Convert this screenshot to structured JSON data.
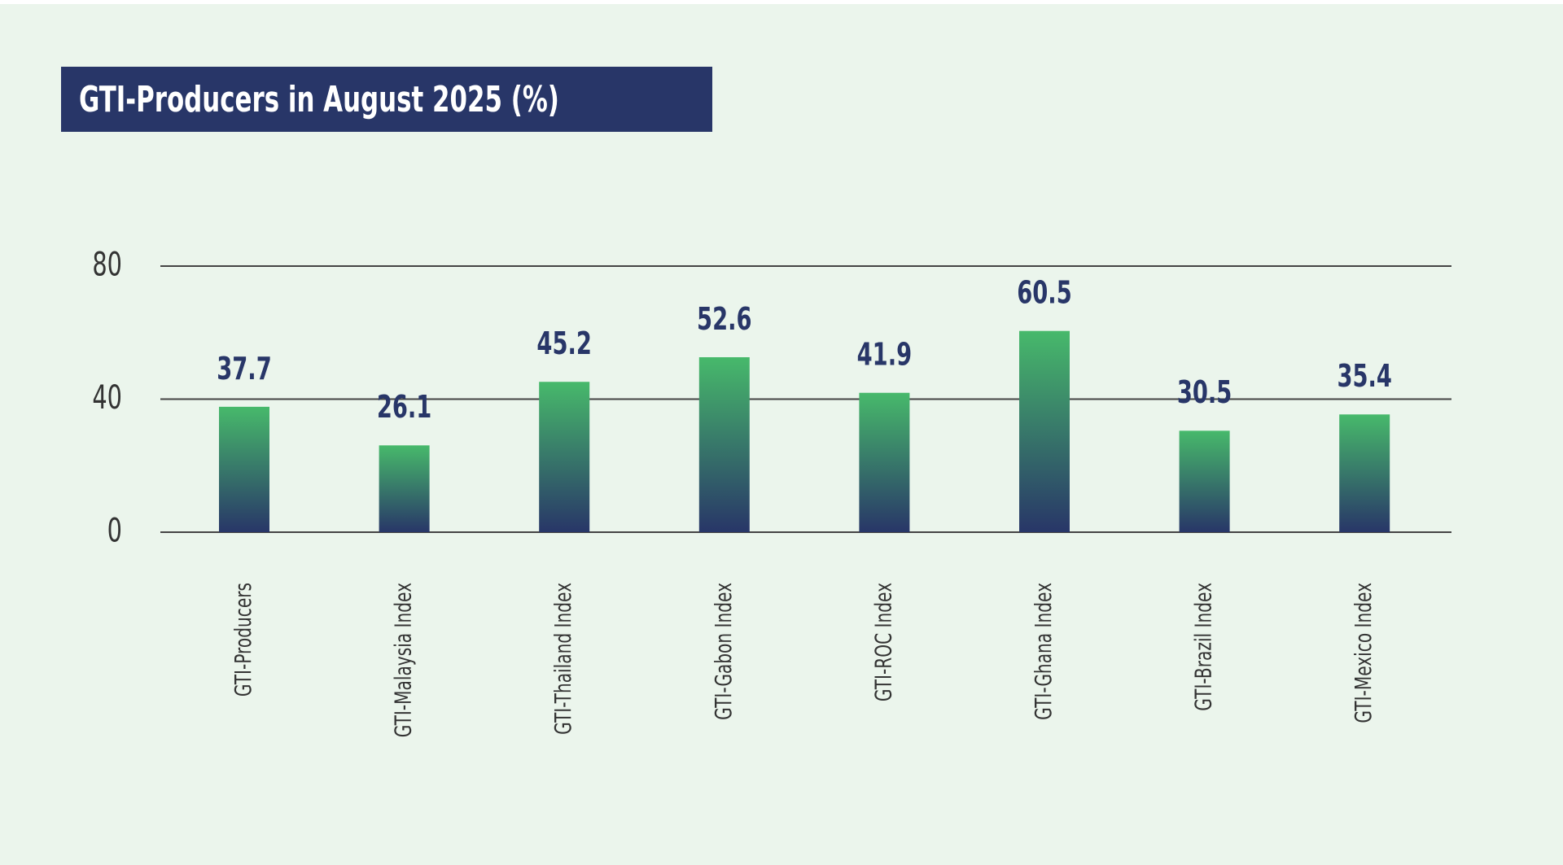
{
  "title": "GTI-Producers in August 2025 (%)",
  "colors": {
    "background": "#ebf5ec",
    "title_bg": "#283668",
    "bar_top": "#47b96b",
    "bar_bottom": "#283668",
    "value_text": "#283668",
    "gridline": "#444444"
  },
  "chart_data": {
    "type": "bar",
    "title": "GTI-Producers in August 2025 (%)",
    "xlabel": "",
    "ylabel": "",
    "ylim": [
      0,
      80
    ],
    "yticks": [
      0,
      40,
      80
    ],
    "grid": true,
    "categories": [
      "GTI-Producers",
      "GTI-Malaysia Index",
      "GTI-Thailand Index",
      "GTI-Gabon Index",
      "GTI-ROC Index",
      "GTI-Ghana Index",
      "GTI-Brazil Index",
      "GTI-Mexico Index"
    ],
    "values": [
      37.7,
      26.1,
      45.2,
      52.6,
      41.9,
      60.5,
      30.5,
      35.4
    ],
    "value_labels": [
      "37.7",
      "26.1",
      "45.2",
      "52.6",
      "41.9",
      "60.5",
      "30.5",
      "35.4"
    ]
  }
}
